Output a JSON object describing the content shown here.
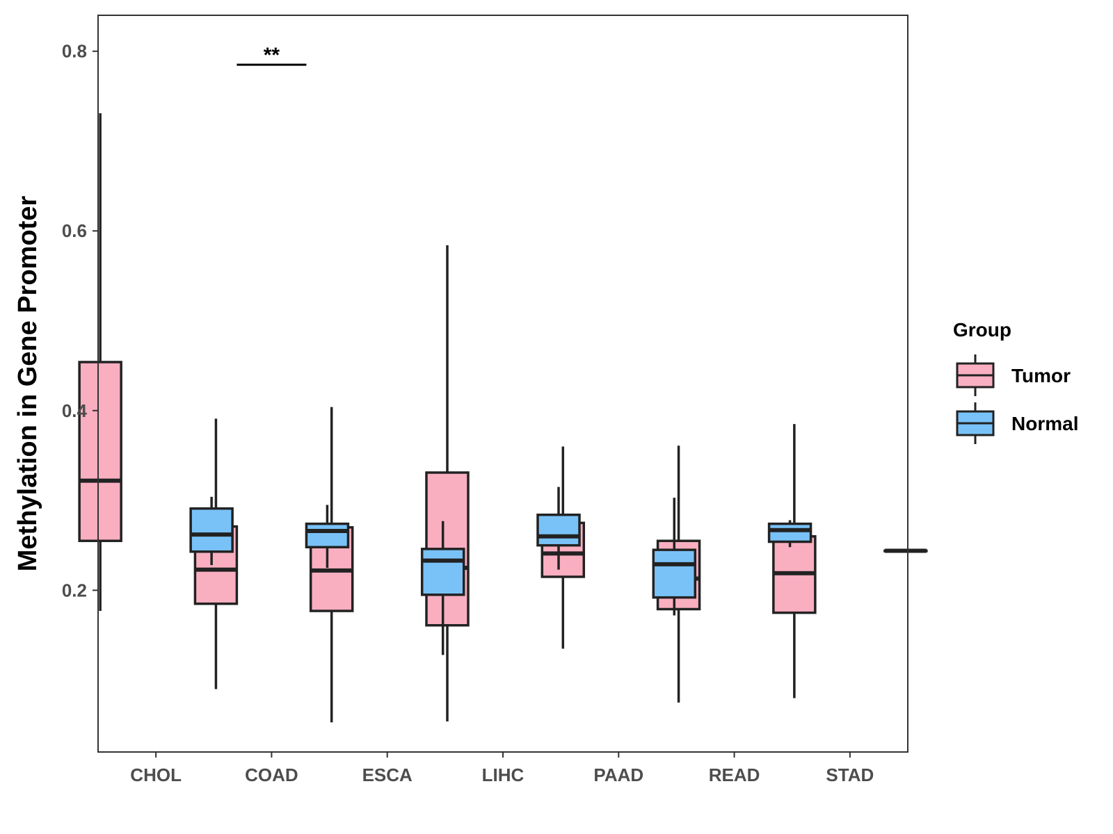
{
  "chart_data": {
    "type": "boxplot",
    "title": "",
    "xlabel": "",
    "ylabel": "Methylation in Gene Promoter",
    "ylim": [
      0.02,
      0.84
    ],
    "yticks": [
      0.2,
      0.4,
      0.6,
      0.8
    ],
    "ytick_labels": [
      "0.2",
      "0.4",
      "0.6",
      "0.8"
    ],
    "grid": false,
    "categories": [
      "CHOL",
      "COAD",
      "ESCA",
      "LIHC",
      "PAAD",
      "READ",
      "STAD"
    ],
    "legend": {
      "title": "Group",
      "position": "right",
      "entries": [
        {
          "name": "Tumor",
          "color": "#FAAFC1"
        },
        {
          "name": "Normal",
          "color": "#79C2F8"
        }
      ]
    },
    "series": [
      {
        "name": "Tumor",
        "color": "#FAAFC1",
        "boxes": [
          {
            "category": "CHOL",
            "min": 0.177,
            "q1": 0.255,
            "median": 0.322,
            "q3": 0.454,
            "max": 0.731
          },
          {
            "category": "COAD",
            "min": 0.09,
            "q1": 0.185,
            "median": 0.223,
            "q3": 0.271,
            "max": 0.391
          },
          {
            "category": "ESCA",
            "min": 0.053,
            "q1": 0.177,
            "median": 0.222,
            "q3": 0.27,
            "max": 0.404
          },
          {
            "category": "LIHC",
            "min": 0.054,
            "q1": 0.161,
            "median": 0.225,
            "q3": 0.331,
            "max": 0.584
          },
          {
            "category": "PAAD",
            "min": 0.135,
            "q1": 0.215,
            "median": 0.241,
            "q3": 0.275,
            "max": 0.36
          },
          {
            "category": "READ",
            "min": 0.075,
            "q1": 0.179,
            "median": 0.213,
            "q3": 0.255,
            "max": 0.361
          },
          {
            "category": "STAD",
            "min": 0.08,
            "q1": 0.175,
            "median": 0.219,
            "q3": 0.26,
            "max": 0.385
          }
        ]
      },
      {
        "name": "Normal",
        "color": "#79C2F8",
        "boxes": [
          {
            "category": "CHOL",
            "min": 0.228,
            "q1": 0.243,
            "median": 0.262,
            "q3": 0.291,
            "max": 0.304
          },
          {
            "category": "COAD",
            "min": 0.225,
            "q1": 0.248,
            "median": 0.266,
            "q3": 0.274,
            "max": 0.295
          },
          {
            "category": "ESCA",
            "min": 0.128,
            "q1": 0.195,
            "median": 0.233,
            "q3": 0.246,
            "max": 0.277
          },
          {
            "category": "LIHC",
            "min": 0.223,
            "q1": 0.25,
            "median": 0.26,
            "q3": 0.284,
            "max": 0.315
          },
          {
            "category": "PAAD",
            "min": 0.172,
            "q1": 0.192,
            "median": 0.229,
            "q3": 0.245,
            "max": 0.303
          },
          {
            "category": "READ",
            "min": 0.248,
            "q1": 0.254,
            "median": 0.267,
            "q3": 0.274,
            "max": 0.278
          },
          {
            "category": "STAD",
            "min": 0.244,
            "q1": 0.244,
            "median": 0.244,
            "q3": 0.244,
            "max": 0.244
          }
        ]
      }
    ],
    "annotations": [
      {
        "type": "significance",
        "category": "COAD",
        "text": "**",
        "y": 0.785
      }
    ]
  }
}
